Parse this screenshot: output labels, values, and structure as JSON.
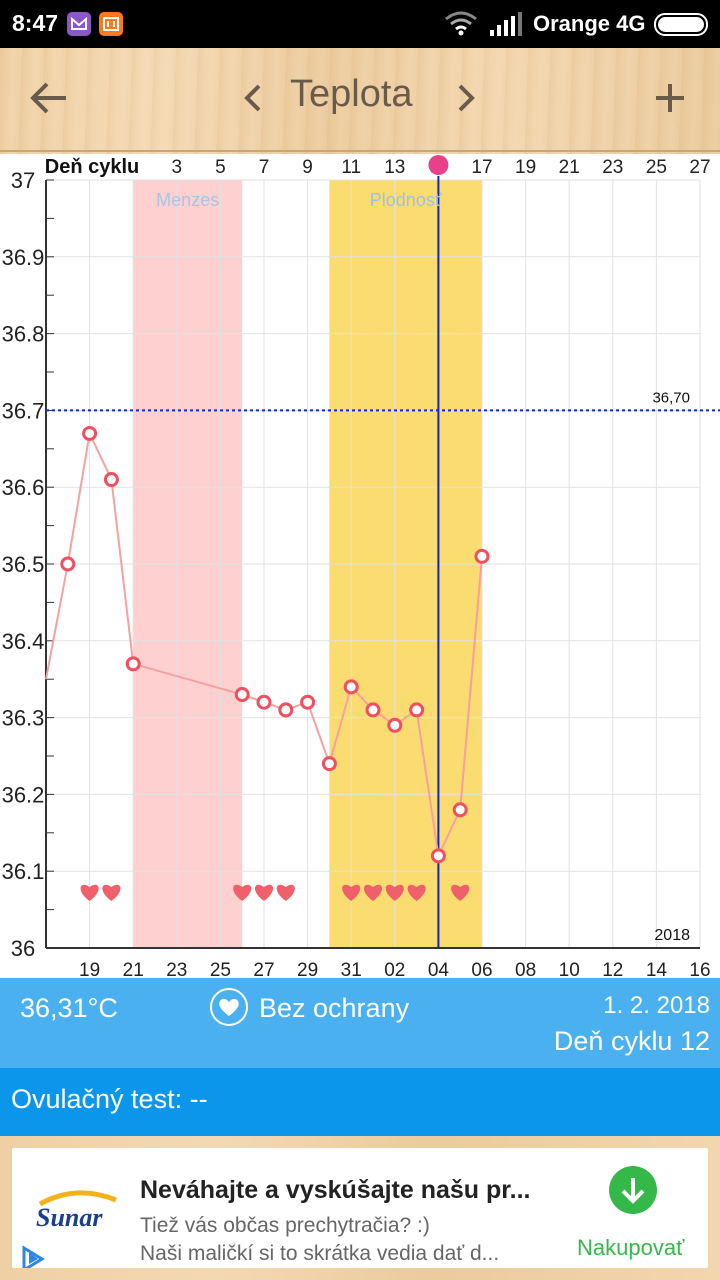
{
  "status_bar": {
    "time": "8:47",
    "carrier": "Orange 4G",
    "notif_gmail_color": "#8b58c8",
    "notif_mi_color": "#ff7a1f"
  },
  "toolbar": {
    "title": "Teplota",
    "back_icon": "back-arrow-icon",
    "prev_icon": "chevron-left-icon",
    "next_icon": "chevron-right-icon",
    "add_icon": "plus-icon"
  },
  "chart_data": {
    "type": "line",
    "cycle_row_label": "Deň cyklu",
    "cycle_day_ticks": [
      "3",
      "5",
      "7",
      "9",
      "11",
      "13",
      "",
      "17",
      "19",
      "21",
      "23",
      "25",
      "27"
    ],
    "ovulation_marker_color": "#e8418c",
    "date_ticks": [
      "19",
      "21",
      "23",
      "25",
      "27",
      "29",
      "31",
      "02",
      "04",
      "06",
      "08",
      "10",
      "12",
      "14",
      "16"
    ],
    "y_ticks": [
      "37",
      "36.9",
      "36.8",
      "36.7",
      "36.6",
      "36.5",
      "36.4",
      "36.3",
      "36.2",
      "36.1",
      "36"
    ],
    "ylim": [
      36.0,
      37.0
    ],
    "year_label": "2018",
    "threshold": {
      "value": 36.7,
      "label": "36,70",
      "color": "#1226d6"
    },
    "bands": [
      {
        "label": "Menzes",
        "from_index": 4,
        "to_index": 9,
        "color": "#fed0d0",
        "label_color": "#a9c4e6"
      },
      {
        "label": "Plodnosť",
        "from_index": 13,
        "to_index": 20,
        "color": "#fadc70",
        "label_color": "#9bc3e8"
      }
    ],
    "selected_index": 18,
    "temperature_series": {
      "color": "#f7a0a0",
      "marker_color": "#ef4f5f",
      "start_value": 36.35,
      "points": [
        {
          "i": 1,
          "v": 36.5
        },
        {
          "i": 2,
          "v": 36.67
        },
        {
          "i": 3,
          "v": 36.61
        },
        {
          "i": 4,
          "v": 36.37
        },
        {
          "i": 9,
          "v": 36.33
        },
        {
          "i": 10,
          "v": 36.32
        },
        {
          "i": 11,
          "v": 36.31
        },
        {
          "i": 12,
          "v": 36.32
        },
        {
          "i": 13,
          "v": 36.24
        },
        {
          "i": 14,
          "v": 36.34
        },
        {
          "i": 15,
          "v": 36.31
        },
        {
          "i": 16,
          "v": 36.29
        },
        {
          "i": 17,
          "v": 36.31
        },
        {
          "i": 18,
          "v": 36.12
        },
        {
          "i": 19,
          "v": 36.18
        },
        {
          "i": 20,
          "v": 36.51
        }
      ]
    },
    "heart_days": [
      2,
      3,
      9,
      10,
      11,
      14,
      15,
      16,
      17,
      19
    ],
    "heart_color": "#f0606a"
  },
  "info": {
    "temperature": "36,31°C",
    "protection": "Bez ochrany",
    "date": "1. 2. 2018",
    "cycle_day": "Deň cyklu 12"
  },
  "ovulation": {
    "text": "Ovulačný test: --"
  },
  "ad": {
    "brand": "Sunar",
    "headline": "Neváhajte a vyskúšajte našu pr...",
    "line1": "Tiež vás občas prechytračia? :)",
    "line2": "Naši maličkí si to skrátka vedia dať d...",
    "cta": "Nakupovať"
  }
}
